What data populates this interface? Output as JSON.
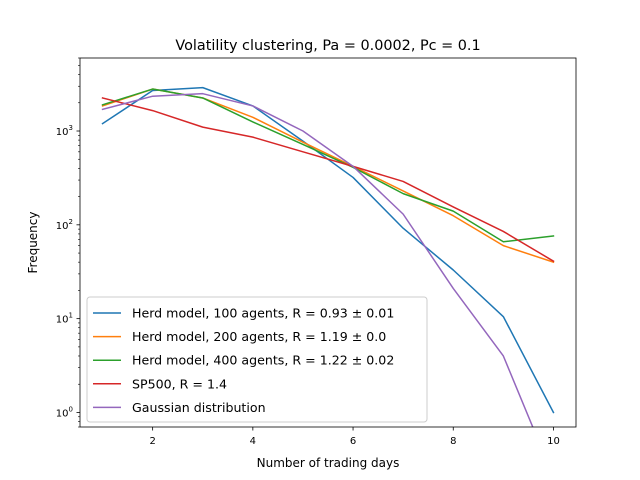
{
  "chart_data": {
    "type": "line",
    "title": "Volatility clustering, Pa = 0.0002, Pc = 0.1",
    "xlabel": "Number of trading days",
    "ylabel": "Frequency",
    "xlim": [
      0.55,
      10.45
    ],
    "ylim": [
      0.7,
      6000
    ],
    "yscale": "log",
    "grid": false,
    "legend_position": "lower-left",
    "x_ticks": [
      2,
      4,
      6,
      8,
      10
    ],
    "x_tick_labels": [
      "2",
      "4",
      "6",
      "8",
      "10"
    ],
    "y_ticks": [
      1,
      10,
      100,
      1000
    ],
    "y_tick_labels": [
      "10^0",
      "10^1",
      "10^2",
      "10^3"
    ],
    "y_tick_base": "10",
    "y_tick_exponents": [
      "0",
      "1",
      "2",
      "3"
    ],
    "x": [
      1,
      2,
      3,
      4,
      5,
      6,
      7,
      8,
      9,
      10
    ],
    "series": [
      {
        "name": "Herd model, 100 agents, R = 0.93 ± 0.01",
        "color": "#1f77b4",
        "values": [
          1200,
          2700,
          2900,
          1850,
          780,
          320,
          92,
          33,
          10.5,
          1.0
        ]
      },
      {
        "name": "Herd model, 200 agents, R = 1.19 ± 0.0",
        "color": "#ff7f0e",
        "values": [
          1850,
          2800,
          2250,
          1400,
          760,
          420,
          230,
          125,
          60,
          40
        ]
      },
      {
        "name": "Herd model, 400 agents, R = 1.22 ± 0.02",
        "color": "#2ca02c",
        "values": [
          1900,
          2800,
          2250,
          1250,
          720,
          410,
          215,
          140,
          66,
          76
        ]
      },
      {
        "name": "SP500, R = 1.4",
        "color": "#d62728",
        "values": [
          2250,
          1650,
          1100,
          860,
          600,
          420,
          290,
          155,
          85,
          41
        ]
      },
      {
        "name": "Gaussian distribution",
        "color": "#9467bd",
        "values": [
          1700,
          2350,
          2500,
          1850,
          1000,
          420,
          130,
          21,
          4,
          0
        ]
      }
    ]
  }
}
